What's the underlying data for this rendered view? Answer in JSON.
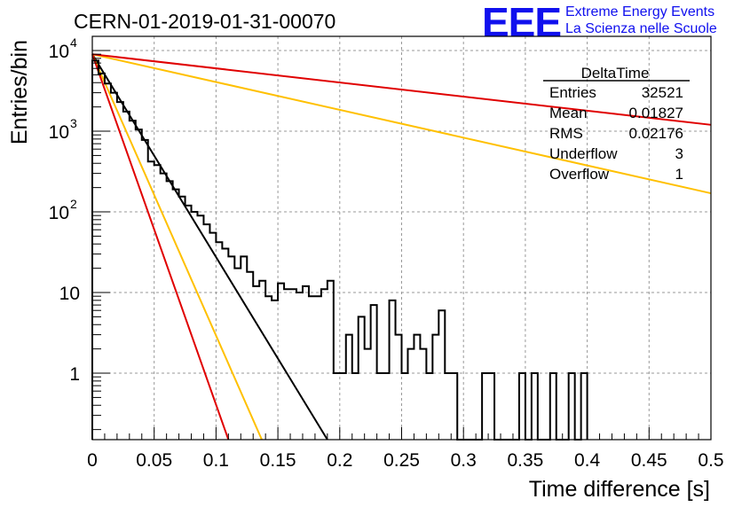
{
  "header": {
    "title": "CERN-01-2019-01-31-00070",
    "logo_text": "EEE",
    "logo_line1": "Extreme Energy Events",
    "logo_line2": "La Scienza nelle Scuole",
    "logo_color": "#1010ee"
  },
  "stats": {
    "name": "DeltaTime",
    "rows": [
      {
        "label": "Entries",
        "value": "32521"
      },
      {
        "label": "Mean",
        "value": "0.01827"
      },
      {
        "label": "RMS",
        "value": "0.02176"
      },
      {
        "label": "Underflow",
        "value": "3"
      },
      {
        "label": "Overflow",
        "value": "1"
      }
    ]
  },
  "chart_data": {
    "type": "histogram",
    "title": "CERN-01-2019-01-31-00070",
    "xlabel": "Time difference [s]",
    "ylabel": "Entries/bin",
    "xlim": [
      0,
      0.5
    ],
    "ylim": [
      0.15,
      15000
    ],
    "yscale": "log",
    "grid": true,
    "x_ticks": [
      "0",
      "0.05",
      "0.1",
      "0.15",
      "0.2",
      "0.25",
      "0.3",
      "0.35",
      "0.4",
      "0.45",
      "0.5"
    ],
    "y_ticks": [
      {
        "value": 1,
        "label": "1"
      },
      {
        "value": 10,
        "label": "10"
      },
      {
        "value": 100,
        "label": "10",
        "exp": "2"
      },
      {
        "value": 1000,
        "label": "10",
        "exp": "3"
      },
      {
        "value": 10000,
        "label": "10",
        "exp": "4"
      }
    ],
    "bin_width": 0.005,
    "histogram": [
      [
        0.0,
        7500
      ],
      [
        0.005,
        5200
      ],
      [
        0.01,
        3900
      ],
      [
        0.015,
        3000
      ],
      [
        0.02,
        2300
      ],
      [
        0.025,
        1750
      ],
      [
        0.03,
        1350
      ],
      [
        0.035,
        1050
      ],
      [
        0.04,
        780
      ],
      [
        0.045,
        420
      ],
      [
        0.05,
        380
      ],
      [
        0.055,
        300
      ],
      [
        0.06,
        240
      ],
      [
        0.065,
        190
      ],
      [
        0.07,
        155
      ],
      [
        0.075,
        120
      ],
      [
        0.08,
        100
      ],
      [
        0.085,
        90
      ],
      [
        0.09,
        70
      ],
      [
        0.095,
        55
      ],
      [
        0.1,
        42
      ],
      [
        0.105,
        35
      ],
      [
        0.11,
        28
      ],
      [
        0.115,
        20
      ],
      [
        0.12,
        28
      ],
      [
        0.125,
        18
      ],
      [
        0.13,
        12
      ],
      [
        0.135,
        14
      ],
      [
        0.14,
        9
      ],
      [
        0.145,
        8
      ],
      [
        0.15,
        13
      ],
      [
        0.155,
        11
      ],
      [
        0.16,
        11
      ],
      [
        0.165,
        10
      ],
      [
        0.17,
        12
      ],
      [
        0.175,
        9
      ],
      [
        0.18,
        9
      ],
      [
        0.185,
        11
      ],
      [
        0.19,
        14
      ],
      [
        0.195,
        1
      ],
      [
        0.2,
        1
      ],
      [
        0.205,
        3
      ],
      [
        0.21,
        1
      ],
      [
        0.215,
        5
      ],
      [
        0.22,
        2
      ],
      [
        0.225,
        7
      ],
      [
        0.23,
        1
      ],
      [
        0.235,
        1
      ],
      [
        0.24,
        8
      ],
      [
        0.245,
        3
      ],
      [
        0.25,
        1
      ],
      [
        0.255,
        2
      ],
      [
        0.26,
        3
      ],
      [
        0.265,
        2
      ],
      [
        0.27,
        1
      ],
      [
        0.275,
        3
      ],
      [
        0.28,
        6
      ],
      [
        0.285,
        1
      ],
      [
        0.29,
        1
      ],
      [
        0.295,
        0
      ],
      [
        0.3,
        0
      ],
      [
        0.305,
        0
      ],
      [
        0.31,
        0
      ],
      [
        0.315,
        1
      ],
      [
        0.32,
        1
      ],
      [
        0.325,
        0
      ],
      [
        0.33,
        0
      ],
      [
        0.335,
        0
      ],
      [
        0.34,
        0
      ],
      [
        0.345,
        1
      ],
      [
        0.35,
        0
      ],
      [
        0.355,
        1
      ],
      [
        0.36,
        0
      ],
      [
        0.365,
        0
      ],
      [
        0.37,
        1
      ],
      [
        0.375,
        0
      ],
      [
        0.38,
        0
      ],
      [
        0.385,
        1
      ],
      [
        0.39,
        0
      ],
      [
        0.395,
        1
      ]
    ],
    "series": [
      {
        "color": "#000000",
        "x": [
          0,
          0.19
        ],
        "y": [
          9000,
          0.15
        ]
      },
      {
        "color": "#ffc000",
        "x": [
          0,
          0.137
        ],
        "y": [
          9000,
          0.15
        ]
      },
      {
        "color": "#e00000",
        "x": [
          0,
          0.11
        ],
        "y": [
          9000,
          0.15
        ]
      },
      {
        "color": "#ffc000",
        "x": [
          0,
          0.5
        ],
        "y": [
          9000,
          170
        ]
      },
      {
        "color": "#e00000",
        "x": [
          0,
          0.5
        ],
        "y": [
          9000,
          1200
        ]
      }
    ]
  }
}
